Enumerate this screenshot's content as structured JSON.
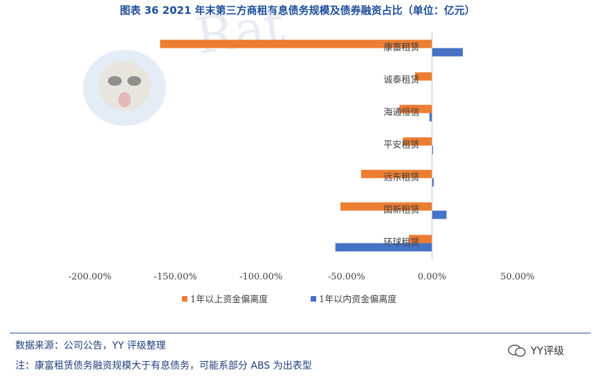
{
  "title": "图表 36 2021 年末第三方商租有息债务规模及债券融资占比（单位：亿元）",
  "source_note": "数据来源：公司公告，YY 评级整理",
  "footnote": "注：康富租赁债务融资规模大于有息债务，可能系部分 ABS 为出表型",
  "brand": "YY评级",
  "watermark_text": "Rat",
  "colors": {
    "series_over_1y": "#ed7d31",
    "series_within_1y": "#4472c4",
    "title": "#1f4e9a"
  },
  "chart_data": {
    "type": "bar",
    "orientation": "horizontal",
    "categories": [
      "康富租赁",
      "诚泰租赁",
      "海通恒信",
      "平安租赁",
      "远东租赁",
      "国新租赁",
      "环球租赁"
    ],
    "series": [
      {
        "name": "1年以上资金偏离度",
        "values": [
          -159.0,
          -10.0,
          -19.0,
          -17.0,
          -41.5,
          -53.5,
          -13.5
        ]
      },
      {
        "name": "1年以内资金偏离度",
        "values": [
          18.0,
          0.0,
          -1.5,
          0.5,
          1.0,
          8.5,
          -56.5
        ]
      }
    ],
    "xlim": [
      -200,
      50
    ],
    "x_ticks": [
      -200,
      -150,
      -100,
      -50,
      0,
      50
    ],
    "x_tick_labels": [
      "-200.00%",
      "-150.00%",
      "-100.00%",
      "-50.00%",
      "0.00%",
      "50.00%"
    ],
    "legend_position": "bottom",
    "grid": false
  }
}
